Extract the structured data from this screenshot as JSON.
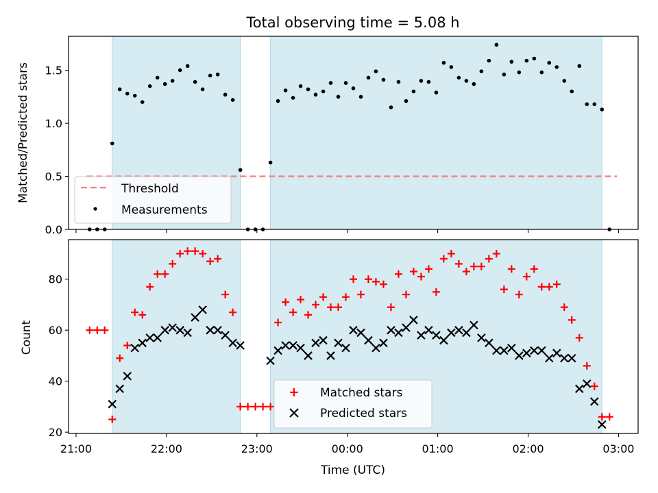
{
  "chart_data": [
    {
      "type": "scatter",
      "title": "Total observing time = 5.08 h",
      "xlabel": "",
      "ylabel": "Matched/Predicted stars",
      "ylim": [
        0,
        1.82
      ],
      "yticks": [
        0.0,
        0.5,
        1.0,
        1.5
      ],
      "ytick_labels": [
        "0.0",
        "0.5",
        "1.0",
        "1.5"
      ],
      "x_axis_format": "hh:mm",
      "threshold": {
        "name": "Threshold",
        "value": 0.5,
        "x_range": [
          "21:07",
          "02:59"
        ],
        "color": "#f08080",
        "style": "dashed"
      },
      "legend_position": "lower-left",
      "series": [
        {
          "name": "Measurements",
          "color": "#000000",
          "marker": "dot",
          "x": [
            "21:09",
            "21:14",
            "21:19",
            "21:24",
            "21:29",
            "21:34",
            "21:39",
            "21:44",
            "21:49",
            "21:54",
            "21:59",
            "22:04",
            "22:09",
            "22:14",
            "22:19",
            "22:24",
            "22:29",
            "22:34",
            "22:39",
            "22:44",
            "22:49",
            "22:54",
            "22:59",
            "23:04",
            "23:09",
            "23:14",
            "23:19",
            "23:24",
            "23:29",
            "23:34",
            "23:39",
            "23:44",
            "23:49",
            "23:54",
            "23:59",
            "00:04",
            "00:09",
            "00:14",
            "00:19",
            "00:24",
            "00:29",
            "00:34",
            "00:39",
            "00:44",
            "00:49",
            "00:54",
            "00:59",
            "01:04",
            "01:09",
            "01:14",
            "01:19",
            "01:24",
            "01:29",
            "01:34",
            "01:39",
            "01:44",
            "01:49",
            "01:54",
            "01:59",
            "02:04",
            "02:09",
            "02:14",
            "02:19",
            "02:24",
            "02:29",
            "02:34",
            "02:39",
            "02:44",
            "02:49",
            "02:54"
          ],
          "y": [
            0,
            0,
            0,
            0.81,
            1.32,
            1.28,
            1.26,
            1.2,
            1.35,
            1.43,
            1.37,
            1.4,
            1.5,
            1.54,
            1.39,
            1.32,
            1.45,
            1.46,
            1.27,
            1.22,
            0.56,
            0,
            0,
            0,
            0.63,
            1.21,
            1.31,
            1.24,
            1.35,
            1.32,
            1.27,
            1.3,
            1.38,
            1.25,
            1.38,
            1.33,
            1.25,
            1.43,
            1.49,
            1.41,
            1.15,
            1.39,
            1.21,
            1.3,
            1.4,
            1.39,
            1.29,
            1.57,
            1.53,
            1.43,
            1.4,
            1.37,
            1.49,
            1.59,
            1.74,
            1.46,
            1.58,
            1.48,
            1.59,
            1.61,
            1.48,
            1.57,
            1.53,
            1.4,
            1.3,
            1.54,
            1.18,
            1.18,
            1.13,
            0
          ]
        }
      ],
      "shaded_spans": [
        {
          "start": "21:24",
          "end": "22:49",
          "color": "#add8e6"
        },
        {
          "start": "23:09",
          "end": "02:49",
          "color": "#add8e6"
        }
      ]
    },
    {
      "type": "scatter",
      "title": "",
      "xlabel": "Time (UTC)",
      "ylabel": "Count",
      "ylim": [
        19.5,
        95.5
      ],
      "yticks": [
        20,
        40,
        60,
        80
      ],
      "ytick_labels": [
        "20",
        "40",
        "60",
        "80"
      ],
      "x_ticks": [
        "21:00",
        "22:00",
        "23:00",
        "00:00",
        "01:00",
        "02:00",
        "03:00"
      ],
      "x_axis_format": "hh:mm",
      "legend_position": "lower-center",
      "series": [
        {
          "name": "Matched stars",
          "color": "#ff0000",
          "marker": "plus",
          "x": [
            "21:09",
            "21:14",
            "21:19",
            "21:24",
            "21:29",
            "21:34",
            "21:39",
            "21:44",
            "21:49",
            "21:54",
            "21:59",
            "22:04",
            "22:09",
            "22:14",
            "22:19",
            "22:24",
            "22:29",
            "22:34",
            "22:39",
            "22:44",
            "22:49",
            "22:54",
            "22:59",
            "23:04",
            "23:09",
            "23:14",
            "23:19",
            "23:24",
            "23:29",
            "23:34",
            "23:39",
            "23:44",
            "23:49",
            "23:54",
            "23:59",
            "00:04",
            "00:09",
            "00:14",
            "00:19",
            "00:24",
            "00:29",
            "00:34",
            "00:39",
            "00:44",
            "00:49",
            "00:54",
            "00:59",
            "01:04",
            "01:09",
            "01:14",
            "01:19",
            "01:24",
            "01:29",
            "01:34",
            "01:39",
            "01:44",
            "01:49",
            "01:54",
            "01:59",
            "02:04",
            "02:09",
            "02:14",
            "02:19",
            "02:24",
            "02:29",
            "02:34",
            "02:39",
            "02:44",
            "02:49",
            "02:54"
          ],
          "y": [
            60,
            60,
            60,
            25,
            49,
            54,
            67,
            66,
            77,
            82,
            82,
            86,
            90,
            91,
            91,
            90,
            87,
            88,
            74,
            67,
            30,
            30,
            30,
            30,
            30,
            63,
            71,
            67,
            72,
            66,
            70,
            73,
            69,
            69,
            73,
            80,
            74,
            80,
            79,
            78,
            69,
            82,
            74,
            83,
            81,
            84,
            75,
            88,
            90,
            86,
            83,
            85,
            85,
            88,
            90,
            76,
            84,
            74,
            81,
            84,
            77,
            77,
            78,
            69,
            64,
            57,
            46,
            38,
            26,
            26
          ]
        },
        {
          "name": "Predicted stars",
          "color": "#000000",
          "marker": "x",
          "x": [
            "21:24",
            "21:29",
            "21:34",
            "21:39",
            "21:44",
            "21:49",
            "21:54",
            "21:59",
            "22:04",
            "22:09",
            "22:14",
            "22:19",
            "22:24",
            "22:29",
            "22:34",
            "22:39",
            "22:44",
            "22:49",
            "23:09",
            "23:14",
            "23:19",
            "23:24",
            "23:29",
            "23:34",
            "23:39",
            "23:44",
            "23:49",
            "23:54",
            "23:59",
            "00:04",
            "00:09",
            "00:14",
            "00:19",
            "00:24",
            "00:29",
            "00:34",
            "00:39",
            "00:44",
            "00:49",
            "00:54",
            "00:59",
            "01:04",
            "01:09",
            "01:14",
            "01:19",
            "01:24",
            "01:29",
            "01:34",
            "01:39",
            "01:44",
            "01:49",
            "01:54",
            "01:59",
            "02:04",
            "02:09",
            "02:14",
            "02:19",
            "02:24",
            "02:29",
            "02:34",
            "02:39",
            "02:44",
            "02:49"
          ],
          "y": [
            31,
            37,
            42,
            53,
            55,
            57,
            57,
            60,
            61,
            60,
            59,
            65,
            68,
            60,
            60,
            58,
            55,
            54,
            48,
            52,
            54,
            54,
            53,
            50,
            55,
            56,
            50,
            55,
            53,
            60,
            59,
            56,
            53,
            55,
            60,
            59,
            61,
            64,
            58,
            60,
            58,
            56,
            59,
            60,
            59,
            62,
            57,
            55,
            52,
            52,
            53,
            50,
            51,
            52,
            52,
            49,
            51,
            49,
            49,
            37,
            39,
            32,
            23
          ]
        }
      ],
      "shaded_spans": [
        {
          "start": "21:24",
          "end": "22:49",
          "color": "#add8e6"
        },
        {
          "start": "23:09",
          "end": "02:49",
          "color": "#add8e6"
        }
      ]
    }
  ]
}
